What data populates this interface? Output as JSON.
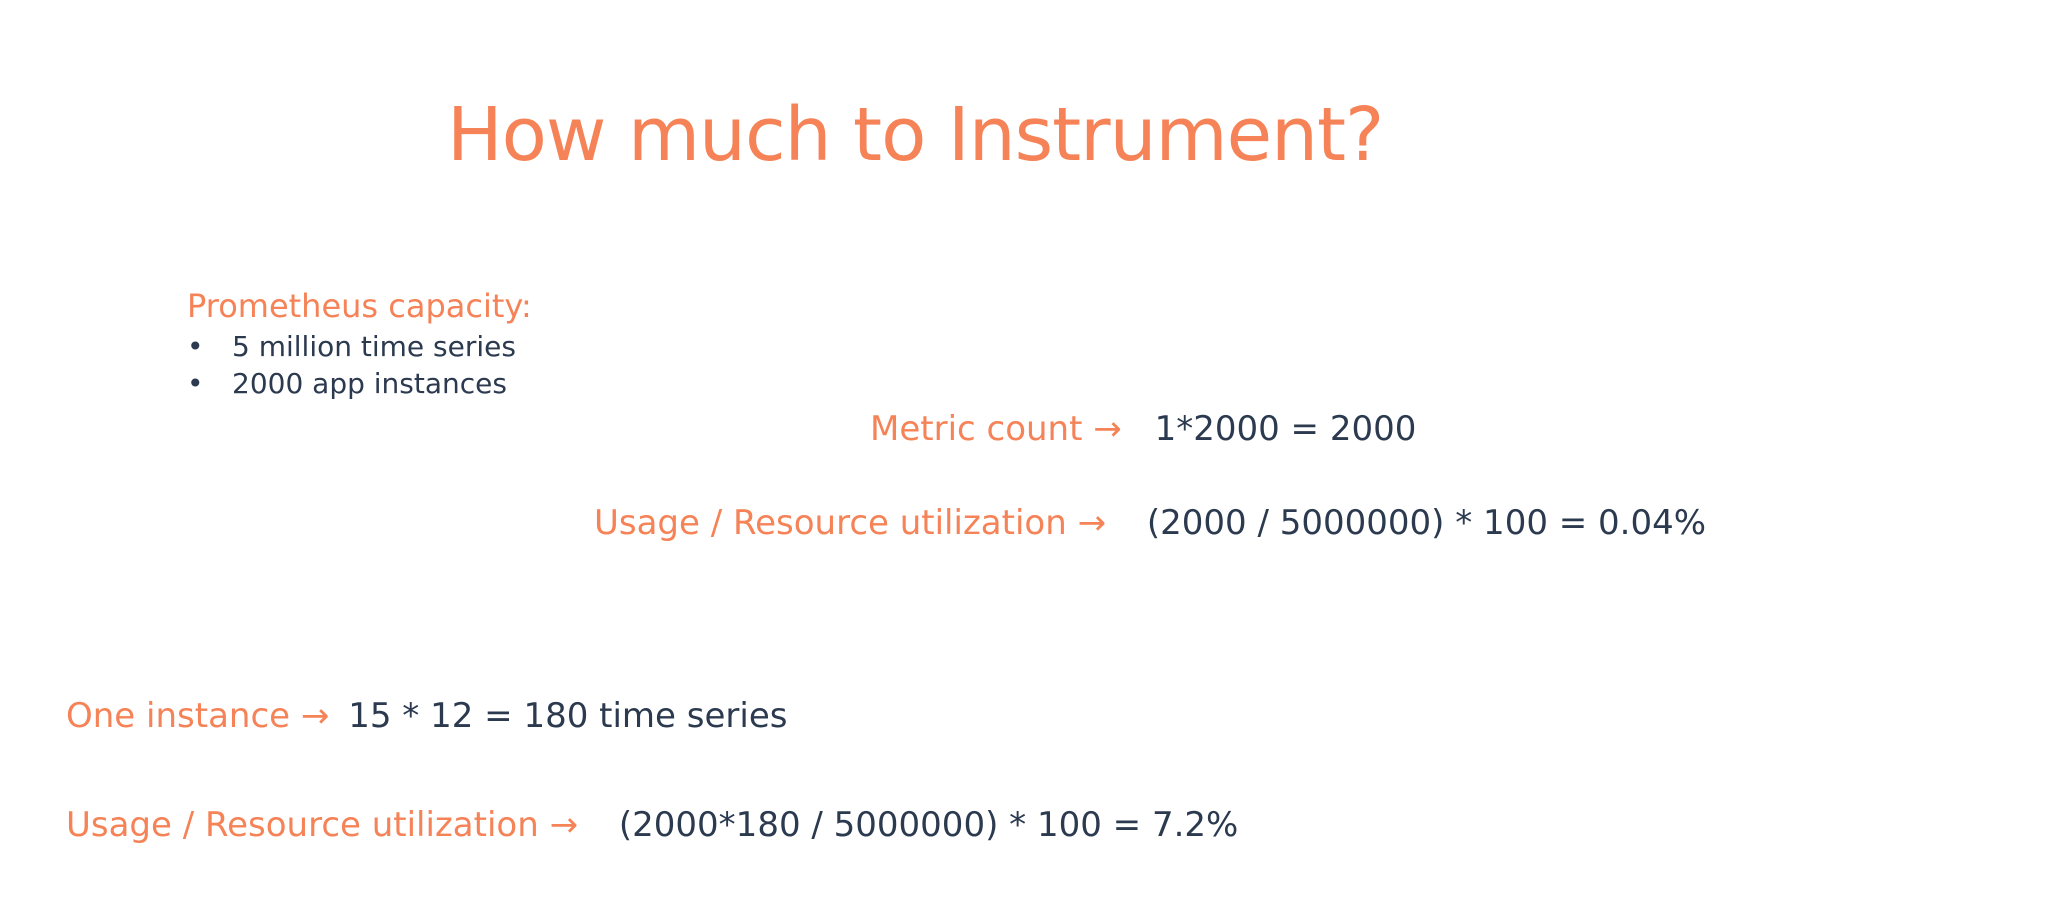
{
  "title": "How much to Instrument?",
  "capacity": {
    "heading": "Prometheus capacity:",
    "items": [
      "5 million time series",
      "2000 app instances"
    ]
  },
  "metric_count": {
    "label": "Metric count",
    "arrow": "→",
    "value": "1*2000 = 2000"
  },
  "usage_1": {
    "label": "Usage / Resource utilization",
    "arrow": "→",
    "value": "(2000 / 5000000) * 100  =  0.04%"
  },
  "one_instance": {
    "label": "One instance",
    "arrow": "→",
    "value": "15 * 12  = 180 time series"
  },
  "usage_2": {
    "label": "Usage / Resource utilization",
    "arrow": "→",
    "value": "(2000*180 / 5000000) * 100  =  7.2%"
  },
  "colors": {
    "accent": "#F58357",
    "text": "#2C3A4F",
    "background": "#FFFFFF"
  }
}
